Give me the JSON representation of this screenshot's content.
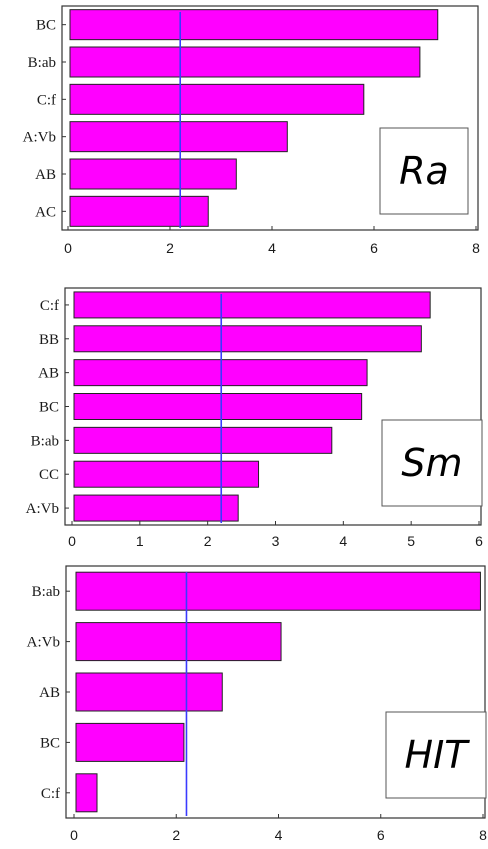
{
  "chart_data": [
    {
      "type": "bar",
      "orientation": "horizontal",
      "panel_label": "Ra",
      "categories": [
        "BC",
        "B:ab",
        "C:f",
        "A:Vb",
        "AB",
        "AC"
      ],
      "values": [
        7.25,
        6.9,
        5.8,
        4.3,
        3.3,
        2.75
      ],
      "xlim": [
        0,
        8
      ],
      "xticks": [
        0,
        2,
        4,
        6,
        8
      ],
      "reference_line": 2.2,
      "bar_color": "#ff00ff",
      "line_color": "#3a3aff",
      "grid": false
    },
    {
      "type": "bar",
      "orientation": "horizontal",
      "panel_label": "Sm",
      "categories": [
        "C:f",
        "BB",
        "AB",
        "BC",
        "B:ab",
        "CC",
        "A:Vb"
      ],
      "values": [
        5.28,
        5.15,
        4.35,
        4.27,
        3.83,
        2.75,
        2.45
      ],
      "xlim": [
        0,
        6
      ],
      "xticks": [
        0,
        1,
        2,
        3,
        4,
        5,
        6
      ],
      "reference_line": 2.2,
      "bar_color": "#ff00ff",
      "line_color": "#3a3aff",
      "grid": false
    },
    {
      "type": "bar",
      "orientation": "horizontal",
      "panel_label": "HIT",
      "categories": [
        "B:ab",
        "A:Vb",
        "AB",
        "BC",
        "C:f"
      ],
      "values": [
        7.95,
        4.05,
        2.9,
        2.15,
        0.45
      ],
      "xlim": [
        0,
        8
      ],
      "xticks": [
        0,
        2,
        4,
        6,
        8
      ],
      "reference_line": 2.2,
      "bar_color": "#ff00ff",
      "line_color": "#3a3aff",
      "grid": false
    }
  ]
}
